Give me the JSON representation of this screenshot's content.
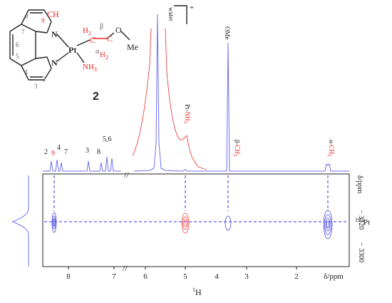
{
  "figure": {
    "compound_number": "2",
    "charge": "+",
    "structure": {
      "atoms": {
        "pt": "Pt",
        "n1": "N",
        "n2": "N",
        "ch": "CH",
        "o": "O",
        "me": "Me",
        "nh3_n": "NH",
        "nh3_sub": "3",
        "h2a": "H",
        "h2a_sub": "2",
        "h2b": "H",
        "h2b_sub": "2",
        "c_alpha": "C",
        "c_beta": "C",
        "alpha": "α",
        "beta": "β"
      },
      "ring_numbers": [
        "8",
        "9",
        "7",
        "6",
        "5",
        "4",
        "3",
        "2"
      ]
    },
    "peak_labels": {
      "water": "water",
      "ome": "OMe",
      "pt_nh3_prefix": "Pt-",
      "pt_nh3_main": "NH",
      "pt_nh3_sub": "3",
      "beta_prefix": "β-",
      "beta_main": "CH",
      "beta_sub": "2",
      "alpha_prefix": "α-",
      "alpha_main": "CH",
      "alpha_sub": "2",
      "arom": [
        "2",
        "9",
        "4",
        "7",
        "3",
        "8",
        "5,6"
      ]
    },
    "axis_break": "//",
    "x_axis": {
      "label_sup": "1",
      "label_main": "H",
      "ticks": [
        "8",
        "7",
        "6",
        "5",
        "4",
        "3",
        "2"
      ],
      "unit_label": "δ/ppm"
    },
    "y_axis": {
      "label_sup": "195",
      "label_main": "Pt",
      "unit_label": "δ/ppm",
      "ticks": [
        "− 3320",
        "− 3300"
      ]
    },
    "colors": {
      "spectrum": "#7070ee",
      "zoom": "#ee4444",
      "guide": "#3030ee",
      "highlight": "#ee2222",
      "axis": "#222222",
      "contour": "#4a4ae0"
    }
  }
}
